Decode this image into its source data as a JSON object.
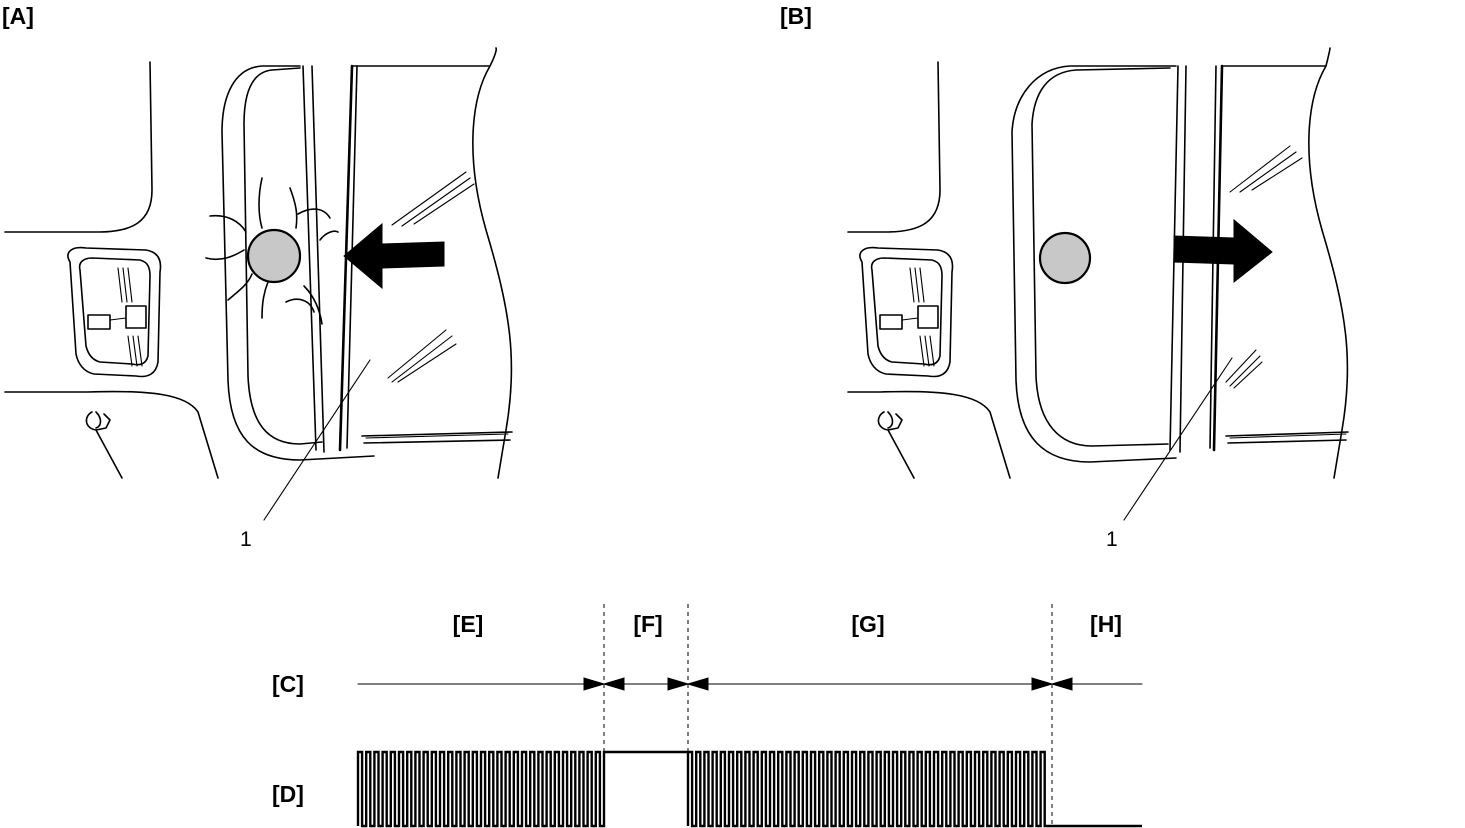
{
  "panels": {
    "a": {
      "label": "[A]",
      "callout": "1"
    },
    "b": {
      "label": "[B]",
      "callout": "1"
    }
  },
  "timing": {
    "row_c_label": "[C]",
    "row_d_label": "[D]",
    "periods": [
      {
        "label": "[E]",
        "state": "pulsing"
      },
      {
        "label": "[F]",
        "state": "high"
      },
      {
        "label": "[G]",
        "state": "pulsing"
      },
      {
        "label": "[H]",
        "state": "low"
      }
    ]
  },
  "colors": {
    "line": "#000000",
    "object": "#c8c8c8",
    "background": "#ffffff"
  }
}
